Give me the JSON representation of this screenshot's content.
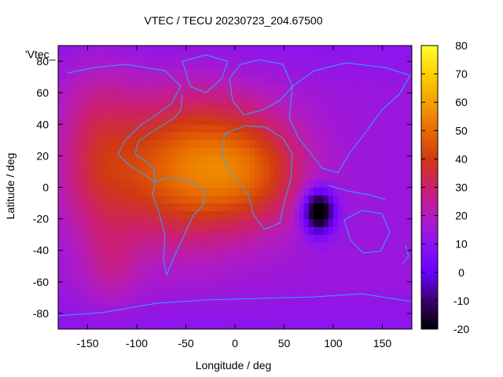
{
  "chart_data": {
    "type": "heatmap",
    "title": "VTEC / TECU 20230723_204.67500",
    "xlabel": "Longitude / deg",
    "ylabel": "Latitude / deg",
    "key_label": "'Vtec_",
    "xlim": [
      -180,
      180
    ],
    "ylim": [
      -90,
      90
    ],
    "x_ticks": [
      -150,
      -100,
      -50,
      0,
      50,
      100,
      150
    ],
    "y_ticks": [
      -80,
      -60,
      -40,
      -20,
      0,
      20,
      40,
      60,
      80
    ],
    "colorbar": {
      "range": [
        -20,
        80
      ],
      "ticks": [
        -20,
        -10,
        0,
        10,
        20,
        30,
        40,
        50,
        60,
        70,
        80
      ],
      "colors": [
        "#000000",
        "#3a006e",
        "#6a00ff",
        "#8a14f0",
        "#b21cc0",
        "#cc1f6e",
        "#d03a10",
        "#e86a00",
        "#f4a000",
        "#ffd000",
        "#ffff30"
      ]
    },
    "features": [
      {
        "lon": -60,
        "lat": 10,
        "sx": 70,
        "sy": 45,
        "value": 45
      },
      {
        "lon": 15,
        "lat": 10,
        "sx": 60,
        "sy": 35,
        "value": 40
      },
      {
        "lon": -140,
        "lat": 20,
        "sx": 40,
        "sy": 55,
        "value": 30
      },
      {
        "lon": -125,
        "lat": -50,
        "sx": 28,
        "sy": 25,
        "value": 22
      },
      {
        "lon": -20,
        "lat": 45,
        "sx": 70,
        "sy": 30,
        "value": 18
      },
      {
        "lon": 85,
        "lat": -15,
        "sx": 16,
        "sy": 14,
        "value": -30
      },
      {
        "lon": 120,
        "lat": 20,
        "sx": 20,
        "sy": 12,
        "value": 14
      }
    ],
    "base_value": 14
  }
}
